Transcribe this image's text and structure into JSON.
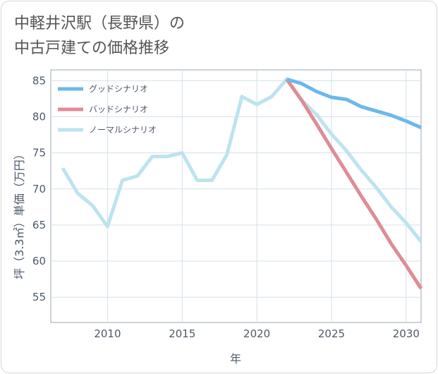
{
  "page": {
    "title_line1": "中軽井沢駅（長野県）の",
    "title_line2": "中古戸建ての価格推移"
  },
  "chart_data": {
    "type": "line",
    "xlabel": "年",
    "ylabel": "坪（3.3㎡）単価（万円）",
    "xlim": [
      2006.2,
      2031
    ],
    "ylim": [
      51.5,
      86.5
    ],
    "xticks": [
      2010,
      2015,
      2020,
      2025,
      2030
    ],
    "yticks": [
      55,
      60,
      65,
      70,
      75,
      80,
      85
    ],
    "grid": true,
    "legend_position": "top-left",
    "series": [
      {
        "name": "グッドシナリオ",
        "color": "#6cb8ec",
        "x": [
          2022,
          2023,
          2024,
          2025,
          2026,
          2027,
          2028,
          2029,
          2030,
          2031
        ],
        "values": [
          85.2,
          84.6,
          83.5,
          82.7,
          82.4,
          81.4,
          80.8,
          80.2,
          79.4,
          78.5
        ]
      },
      {
        "name": "バッドシナリオ",
        "color": "#de8c95",
        "x": [
          2022,
          2023,
          2024,
          2025,
          2026,
          2027,
          2028,
          2029,
          2030,
          2031
        ],
        "values": [
          85.2,
          82.3,
          79.0,
          75.6,
          72.3,
          69.0,
          65.8,
          62.4,
          59.4,
          56.2
        ]
      },
      {
        "name": "ノーマルシナリオ",
        "color": "#bde3ef",
        "x": [
          2007,
          2008,
          2009,
          2010,
          2011,
          2012,
          2013,
          2014,
          2015,
          2016,
          2017,
          2018,
          2019,
          2020,
          2021,
          2022,
          2023,
          2024,
          2025,
          2026,
          2027,
          2028,
          2029,
          2030,
          2031
        ],
        "values": [
          72.9,
          69.4,
          67.7,
          64.8,
          71.2,
          71.8,
          74.5,
          74.5,
          75.0,
          71.2,
          71.2,
          74.8,
          82.8,
          81.7,
          82.8,
          85.2,
          82.3,
          80.3,
          77.6,
          75.3,
          72.6,
          70.2,
          67.5,
          65.3,
          62.7
        ]
      }
    ]
  }
}
